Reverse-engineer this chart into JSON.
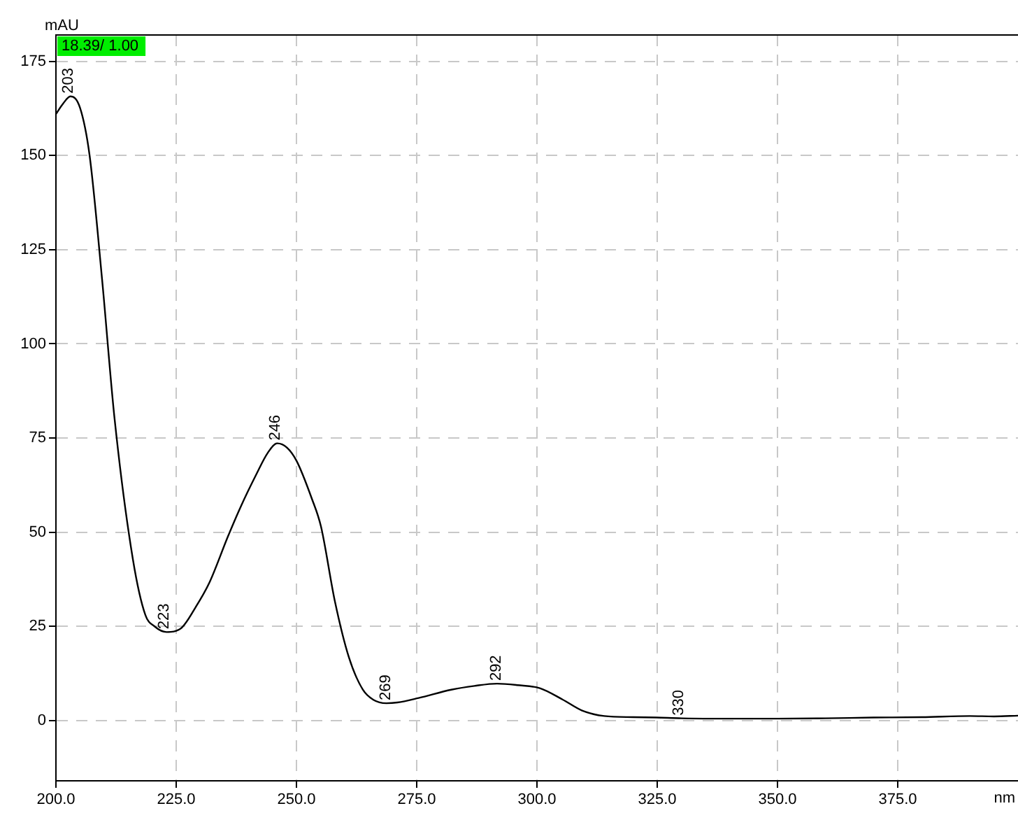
{
  "chart_data": {
    "type": "line",
    "xlabel": "nm",
    "ylabel": "mAU",
    "annotations": [
      "18.39/ 1.00",
      {
        "text": "203",
        "x": 203,
        "y": 165.7
      },
      {
        "text": "223",
        "x": 223,
        "y": 23.5
      },
      {
        "text": "246",
        "x": 246,
        "y": 73.6
      },
      {
        "text": "269",
        "x": 269,
        "y": 4.6
      },
      {
        "text": "292",
        "x": 292,
        "y": 9.8
      },
      {
        "text": "330",
        "x": 330,
        "y": 0.6
      }
    ],
    "series": [
      {
        "color": "#000000",
        "x": [
          200,
          201.5,
          203,
          205,
          207,
          209.6,
          212.2,
          216,
          218.6,
          220.5,
          223,
          226,
          229,
          231.9,
          235.8,
          238.5,
          241.6,
          244,
          246,
          248,
          250,
          253.2,
          255.1,
          258,
          260.9,
          263.8,
          266,
          268.7,
          271,
          275.4,
          282.2,
          287,
          291.7,
          296,
          300.6,
          305.3,
          309.3,
          314,
          320,
          324.8,
          330,
          340,
          350,
          360,
          370,
          380,
          390,
          395,
          400
        ],
        "values": [
          161,
          163.8,
          165.7,
          162.7,
          150,
          117,
          80,
          42.8,
          28,
          25,
          23.5,
          24.5,
          30,
          36.6,
          49,
          57,
          65.2,
          71,
          73.6,
          72.5,
          69,
          58.9,
          51.5,
          31.6,
          16.8,
          8.2,
          5.5,
          4.6,
          4.8,
          6.0,
          8.2,
          9.2,
          9.8,
          9.4,
          8.6,
          5.6,
          2.7,
          1.2,
          0.9,
          0.8,
          0.6,
          0.5,
          0.5,
          0.6,
          0.8,
          0.9,
          1.2,
          1.1,
          1.3
        ]
      }
    ],
    "xlim": [
      200,
      400
    ],
    "xticks": [
      {
        "value": 200,
        "label": "200.0"
      },
      {
        "value": 225,
        "label": "225.0"
      },
      {
        "value": 250,
        "label": "250.0"
      },
      {
        "value": 275,
        "label": "275.0"
      },
      {
        "value": 300,
        "label": "300.0"
      },
      {
        "value": 325,
        "label": "325.0"
      },
      {
        "value": 350,
        "label": "350.0"
      },
      {
        "value": 375,
        "label": "375.0"
      }
    ],
    "ylim": [
      -16,
      182
    ],
    "yticks": [
      0,
      25,
      50,
      75,
      100,
      125,
      150,
      175
    ],
    "grid": true,
    "line_style": "solid",
    "legend": false
  }
}
